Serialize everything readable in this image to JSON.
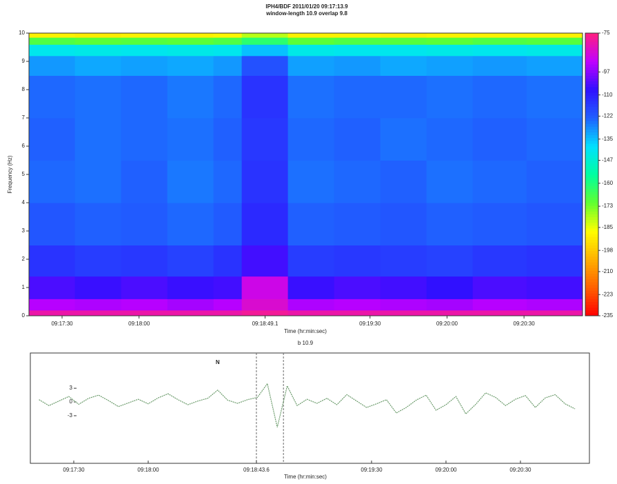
{
  "chart_data": [
    {
      "type": "heatmap",
      "title": "IPH4/BDF 2011/01/20 09:17:13.9",
      "subtitle": "window-length 10.9  overlap 9.8",
      "y_label": "Frequency (Hz)",
      "x_label": "Time (hr:min:sec)",
      "xlim": [
        33437.1,
        33652.8
      ],
      "ylim": [
        0,
        10
      ],
      "yticks": [
        0,
        1,
        2,
        3,
        4,
        5,
        6,
        7,
        8,
        9,
        10
      ],
      "xticks": [
        {
          "value": 33450,
          "label": "09:17:30"
        },
        {
          "value": 33480,
          "label": "09:18:00"
        },
        {
          "value": 33529.1,
          "label": "09:18:49.1"
        },
        {
          "value": 33570,
          "label": "09:19:30"
        },
        {
          "value": 33600,
          "label": "09:20:00"
        },
        {
          "value": 33630,
          "label": "09:20:30"
        }
      ],
      "x_bins": [
        33437.1,
        33455,
        33473,
        33491,
        33509,
        33520,
        33538,
        33556,
        33574,
        33592,
        33610,
        33631,
        33652.8
      ],
      "y_bins": [
        0,
        0.2,
        0.6,
        1.4,
        2.5,
        4,
        5.5,
        7,
        8.5,
        9.2,
        9.6,
        9.85,
        10
      ],
      "values": [
        [
          -80,
          -80,
          -80,
          -80,
          -80,
          -78,
          -80,
          -80,
          -80,
          -80,
          -80,
          -80
        ],
        [
          -92,
          -93,
          -92,
          -94,
          -92,
          -85,
          -93,
          -92,
          -93,
          -94,
          -92,
          -93
        ],
        [
          -104,
          -106,
          -104,
          -106,
          -105,
          -88,
          -106,
          -104,
          -105,
          -107,
          -104,
          -105
        ],
        [
          -114,
          -116,
          -115,
          -117,
          -114,
          -105,
          -116,
          -115,
          -116,
          -117,
          -115,
          -114
        ],
        [
          -121,
          -123,
          -122,
          -124,
          -122,
          -112,
          -123,
          -122,
          -121,
          -123,
          -122,
          -121
        ],
        [
          -124,
          -125,
          -123,
          -126,
          -124,
          -114,
          -125,
          -124,
          -123,
          -125,
          -124,
          -123
        ],
        [
          -123,
          -125,
          -124,
          -125,
          -123,
          -115,
          -124,
          -123,
          -125,
          -124,
          -123,
          -124
        ],
        [
          -124,
          -125,
          -124,
          -126,
          -124,
          -114,
          -125,
          -124,
          -124,
          -125,
          -124,
          -125
        ],
        [
          -130,
          -132,
          -131,
          -132,
          -130,
          -120,
          -131,
          -130,
          -132,
          -131,
          -130,
          -131
        ],
        [
          -142,
          -143,
          -142,
          -143,
          -142,
          -135,
          -143,
          -142,
          -142,
          -143,
          -142,
          -143
        ],
        [
          -168,
          -170,
          -169,
          -170,
          -168,
          -162,
          -170,
          -168,
          -169,
          -170,
          -168,
          -169
        ],
        [
          -190,
          -191,
          -190,
          -190,
          -189,
          -180,
          -190,
          -190,
          -191,
          -190,
          -190,
          -190
        ]
      ],
      "clim": [
        -235,
        -75
      ],
      "cticks": [
        -75,
        -97,
        -110,
        -122,
        -135,
        -147,
        -160,
        -173,
        -185,
        -198,
        -210,
        -223,
        -235
      ],
      "colormap": [
        "#ff0000",
        "#ff6000",
        "#ffb000",
        "#ffff00",
        "#60ff30",
        "#00ffa0",
        "#00e0ff",
        "#2060ff",
        "#3010ff",
        "#c000ff",
        "#ff2080"
      ]
    },
    {
      "type": "line",
      "title": "b 10.9",
      "x_label": "Time (hr:min:sec)",
      "xlim": [
        33432.5,
        33657.8
      ],
      "ylim": [
        -13.4,
        10.7
      ],
      "yticks": [
        3,
        0,
        -3
      ],
      "xticks": [
        {
          "value": 33450,
          "label": "09:17:30"
        },
        {
          "value": 33480,
          "label": "09:18:00"
        },
        {
          "value": 33523.6,
          "label": "09:18:43.6"
        },
        {
          "value": 33570,
          "label": "09:19:30"
        },
        {
          "value": 33600,
          "label": "09:20:00"
        },
        {
          "value": 33630,
          "label": "09:20:30"
        }
      ],
      "window_lines": [
        33523.6,
        33534.5
      ],
      "annotations": [
        {
          "text": "N",
          "x": 33508,
          "y": 6.5
        }
      ],
      "color": "#6a9a6a",
      "x": [
        33436,
        33440,
        33444,
        33448,
        33452,
        33456,
        33460,
        33464,
        33468,
        33472,
        33476,
        33480,
        33484,
        33488,
        33492,
        33496,
        33500,
        33504,
        33508,
        33512,
        33516,
        33520,
        33524,
        33528,
        33532,
        33536,
        33540,
        33544,
        33548,
        33552,
        33556,
        33560,
        33564,
        33568,
        33572,
        33576,
        33580,
        33584,
        33588,
        33592,
        33596,
        33600,
        33604,
        33608,
        33612,
        33616,
        33620,
        33624,
        33628,
        33632,
        33636,
        33640,
        33644,
        33648,
        33652
      ],
      "values": [
        0.5,
        -0.8,
        0.2,
        1.2,
        -0.5,
        0.8,
        1.5,
        0.3,
        -1,
        -0.2,
        0.6,
        -0.4,
        0.9,
        1.8,
        0.5,
        -0.6,
        0.2,
        0.8,
        2.6,
        0.4,
        -0.3,
        0.5,
        1,
        4,
        -5.5,
        3.5,
        -0.8,
        0.6,
        -0.3,
        0.8,
        -0.6,
        1.6,
        0.2,
        -1.2,
        -0.4,
        0.5,
        -2.4,
        -1.2,
        0.4,
        1.5,
        -1.8,
        -0.6,
        1.2,
        -2.6,
        -0.5,
        2,
        1,
        -0.8,
        0.6,
        1.4,
        -1.2,
        0.9,
        1.6,
        -0.4,
        -1.5
      ]
    }
  ]
}
